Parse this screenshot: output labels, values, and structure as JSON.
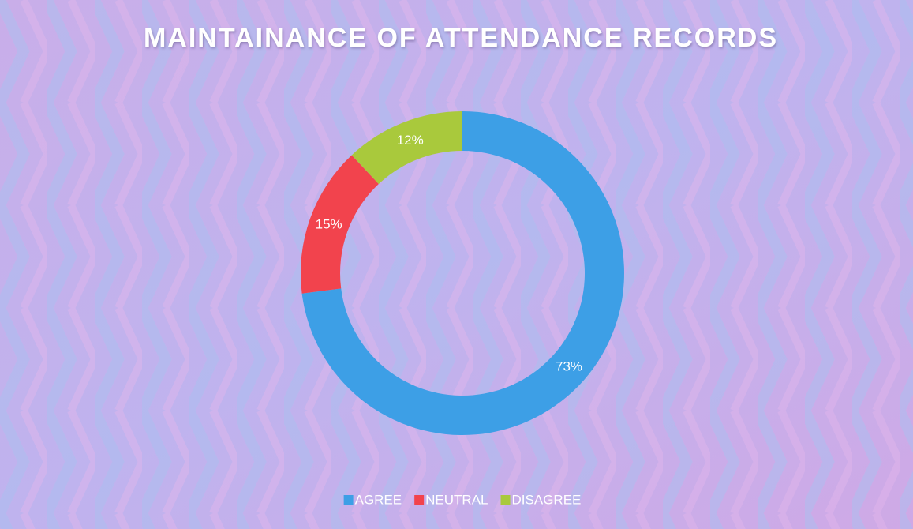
{
  "chart_data": {
    "type": "donut",
    "title": "MAINTAINANCE OF ATTENDANCE RECORDS",
    "categories": [
      "AGREE",
      "NEUTRAL",
      "DISAGREE"
    ],
    "values": [
      73,
      15,
      12
    ],
    "value_labels": [
      "73%",
      "15%",
      "12%"
    ],
    "colors": [
      "#3d9fe6",
      "#f2434d",
      "#a9c93c"
    ],
    "legend": "bottom"
  }
}
